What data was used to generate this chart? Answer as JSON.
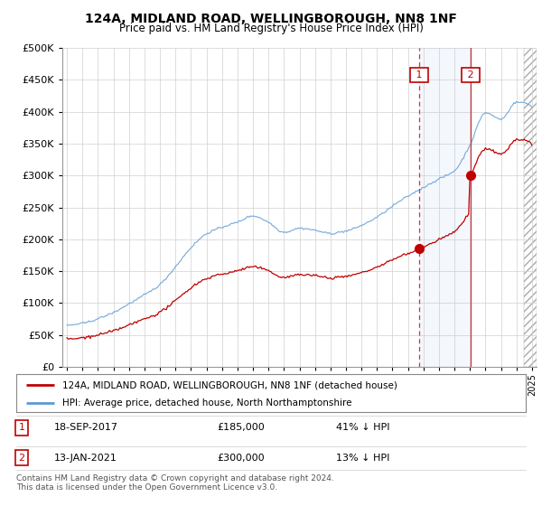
{
  "title": "124A, MIDLAND ROAD, WELLINGBOROUGH, NN8 1NF",
  "subtitle": "Price paid vs. HM Land Registry's House Price Index (HPI)",
  "footer": "Contains HM Land Registry data © Crown copyright and database right 2024.\nThis data is licensed under the Open Government Licence v3.0.",
  "legend_line1": "124A, MIDLAND ROAD, WELLINGBOROUGH, NN8 1NF (detached house)",
  "legend_line2": "HPI: Average price, detached house, North Northamptonshire",
  "annotation1_label": "1",
  "annotation1_date": "18-SEP-2017",
  "annotation1_price": "£185,000",
  "annotation1_hpi": "41% ↓ HPI",
  "annotation2_label": "2",
  "annotation2_date": "13-JAN-2021",
  "annotation2_price": "£300,000",
  "annotation2_hpi": "13% ↓ HPI",
  "hpi_color": "#5b9bd5",
  "sale_color": "#c00000",
  "background_color": "#ffffff",
  "grid_color": "#d0d0d0",
  "ylim": [
    0,
    500000
  ],
  "yticks": [
    0,
    50000,
    100000,
    150000,
    200000,
    250000,
    300000,
    350000,
    400000,
    450000,
    500000
  ],
  "sale1_x": 2017.72,
  "sale1_y": 185000,
  "sale2_x": 2021.04,
  "sale2_y": 300000,
  "xmin": 1994.7,
  "xmax": 2025.3,
  "xtick_years": [
    1995,
    1996,
    1997,
    1998,
    1999,
    2000,
    2001,
    2002,
    2003,
    2004,
    2005,
    2006,
    2007,
    2008,
    2009,
    2010,
    2011,
    2012,
    2013,
    2014,
    2015,
    2016,
    2017,
    2018,
    2019,
    2020,
    2021,
    2022,
    2023,
    2024,
    2025
  ]
}
